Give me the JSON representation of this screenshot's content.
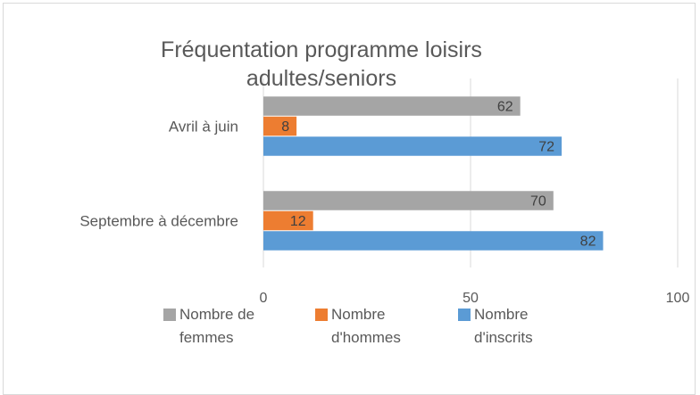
{
  "chart_data": {
    "type": "bar",
    "orientation": "horizontal",
    "title": "Fréquentation programme loisirs adultes/seniors",
    "categories": [
      "Avril à juin",
      "Septembre à décembre"
    ],
    "series": [
      {
        "name": "Nombre de femmes",
        "color": "#a5a5a5",
        "values": [
          62,
          70
        ]
      },
      {
        "name": "Nombre d'hommes",
        "color": "#ed7d31",
        "values": [
          8,
          12
        ]
      },
      {
        "name": "Nombre d'inscrits",
        "color": "#5b9bd5",
        "values": [
          72,
          82
        ]
      }
    ],
    "xlim": [
      0,
      100
    ],
    "xticks": [
      0,
      50,
      100
    ],
    "grid": true,
    "legend": "bottom"
  }
}
